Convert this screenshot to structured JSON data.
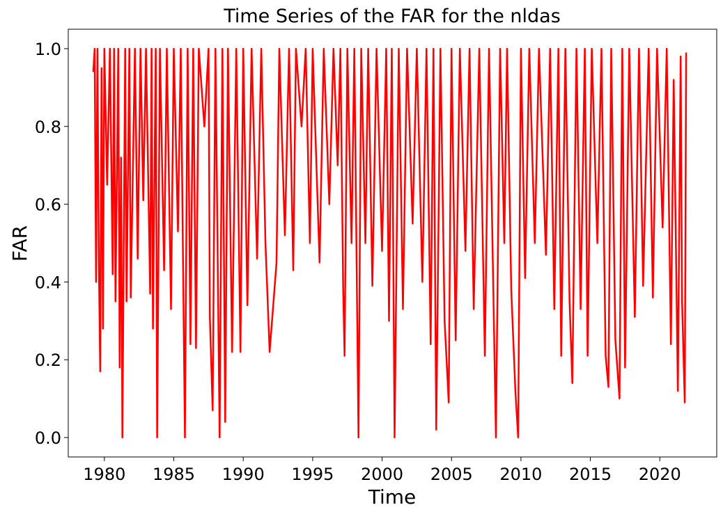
{
  "chart_data": {
    "type": "line",
    "title": "Time Series of the FAR for the nldas",
    "x_label": "Time",
    "y_label": "FAR",
    "xlim": [
      1977.4,
      2024.1
    ],
    "ylim": [
      -0.05,
      1.05
    ],
    "xticks": [
      1980,
      1985,
      1990,
      1995,
      2000,
      2005,
      2010,
      2015,
      2020
    ],
    "yticks": [
      {
        "value": 0,
        "label": "0.0"
      },
      0.2,
      0.4,
      0.6,
      0.8,
      {
        "value": 1,
        "label": "1.0"
      }
    ],
    "series": [
      {
        "color": "#ff0000",
        "x": [
          1979.2,
          1979.3,
          1979.4,
          1979.5,
          1979.6,
          1979.7,
          1979.8,
          1979.9,
          1980.0,
          1980.2,
          1980.4,
          1980.6,
          1980.7,
          1980.8,
          1981.0,
          1981.1,
          1981.2,
          1981.3,
          1981.5,
          1981.6,
          1981.8,
          1981.9,
          1982.2,
          1982.4,
          1982.6,
          1982.8,
          1983.0,
          1983.3,
          1983.4,
          1983.5,
          1983.7,
          1983.8,
          1984.0,
          1984.3,
          1984.5,
          1984.8,
          1985.0,
          1985.3,
          1985.5,
          1985.8,
          1986.0,
          1986.2,
          1986.4,
          1986.6,
          1986.8,
          1987.2,
          1987.5,
          1987.6,
          1987.8,
          1988.0,
          1988.3,
          1988.5,
          1988.7,
          1988.9,
          1989.2,
          1989.5,
          1989.8,
          1990.0,
          1990.3,
          1990.6,
          1991.0,
          1991.3,
          1991.6,
          1991.9,
          1992.4,
          1992.6,
          1993.0,
          1993.3,
          1993.6,
          1993.8,
          1994.2,
          1994.5,
          1994.8,
          1995.0,
          1995.5,
          1995.8,
          1996.2,
          1996.5,
          1996.8,
          1997.0,
          1997.2,
          1997.3,
          1997.5,
          1997.8,
          1998.0,
          1998.3,
          1998.5,
          1998.8,
          1999.0,
          1999.3,
          1999.6,
          2000.0,
          2000.3,
          2000.5,
          2000.7,
          2000.9,
          2001.2,
          2001.5,
          2001.8,
          2002.2,
          2002.5,
          2002.9,
          2003.2,
          2003.5,
          2003.7,
          2003.9,
          2004.2,
          2004.5,
          2004.8,
          2005.0,
          2005.3,
          2005.6,
          2006.0,
          2006.3,
          2006.6,
          2007.0,
          2007.4,
          2007.7,
          2008.2,
          2008.5,
          2008.8,
          2009.0,
          2009.3,
          2009.6,
          2009.8,
          2010.0,
          2010.3,
          2010.6,
          2011.0,
          2011.3,
          2011.8,
          2012.1,
          2012.4,
          2012.7,
          2012.9,
          2013.2,
          2013.5,
          2013.7,
          2014.0,
          2014.3,
          2014.6,
          2014.8,
          2015.1,
          2015.5,
          2015.8,
          2016.1,
          2016.3,
          2016.5,
          2016.8,
          2017.1,
          2017.3,
          2017.5,
          2017.8,
          2018.2,
          2018.5,
          2018.8,
          2019.2,
          2019.5,
          2019.8,
          2020.2,
          2020.5,
          2020.8,
          2021.0,
          2021.3,
          2021.5,
          2021.6,
          2021.8,
          2021.9
        ],
        "values": [
          0.94,
          1.0,
          0.4,
          1.0,
          0.45,
          0.17,
          0.95,
          0.28,
          1.0,
          0.65,
          1.0,
          0.42,
          1.0,
          0.35,
          1.0,
          0.18,
          0.72,
          0.0,
          1.0,
          0.35,
          1.0,
          0.36,
          1.0,
          0.46,
          1.0,
          0.61,
          1.0,
          0.37,
          1.0,
          0.28,
          1.0,
          0.0,
          1.0,
          0.43,
          1.0,
          0.33,
          1.0,
          0.53,
          1.0,
          0.0,
          1.0,
          0.24,
          1.0,
          0.23,
          1.0,
          0.8,
          1.0,
          0.31,
          0.07,
          1.0,
          0.0,
          1.0,
          0.04,
          1.0,
          0.22,
          1.0,
          0.22,
          1.0,
          0.34,
          1.0,
          0.46,
          1.0,
          0.5,
          0.22,
          0.45,
          1.0,
          0.52,
          1.0,
          0.43,
          1.0,
          0.8,
          1.0,
          0.5,
          1.0,
          0.45,
          1.0,
          0.6,
          1.0,
          0.7,
          1.0,
          0.38,
          0.21,
          1.0,
          0.5,
          1.0,
          0.0,
          1.0,
          0.5,
          1.0,
          0.39,
          1.0,
          0.48,
          1.0,
          0.3,
          1.0,
          0.0,
          1.0,
          0.33,
          1.0,
          0.55,
          1.0,
          0.4,
          1.0,
          0.24,
          1.0,
          0.02,
          1.0,
          0.3,
          0.09,
          1.0,
          0.25,
          1.0,
          0.48,
          1.0,
          0.33,
          1.0,
          0.21,
          1.0,
          0.0,
          1.0,
          0.5,
          1.0,
          0.38,
          0.12,
          0.0,
          1.0,
          0.41,
          1.0,
          0.5,
          1.0,
          0.47,
          1.0,
          0.33,
          1.0,
          0.21,
          1.0,
          0.35,
          0.14,
          1.0,
          0.33,
          1.0,
          0.21,
          1.0,
          0.5,
          1.0,
          0.21,
          0.13,
          1.0,
          0.25,
          0.1,
          1.0,
          0.18,
          1.0,
          0.31,
          1.0,
          0.39,
          1.0,
          0.36,
          1.0,
          0.54,
          1.0,
          0.24,
          0.92,
          0.12,
          0.98,
          0.35,
          0.09,
          0.99
        ]
      }
    ]
  }
}
